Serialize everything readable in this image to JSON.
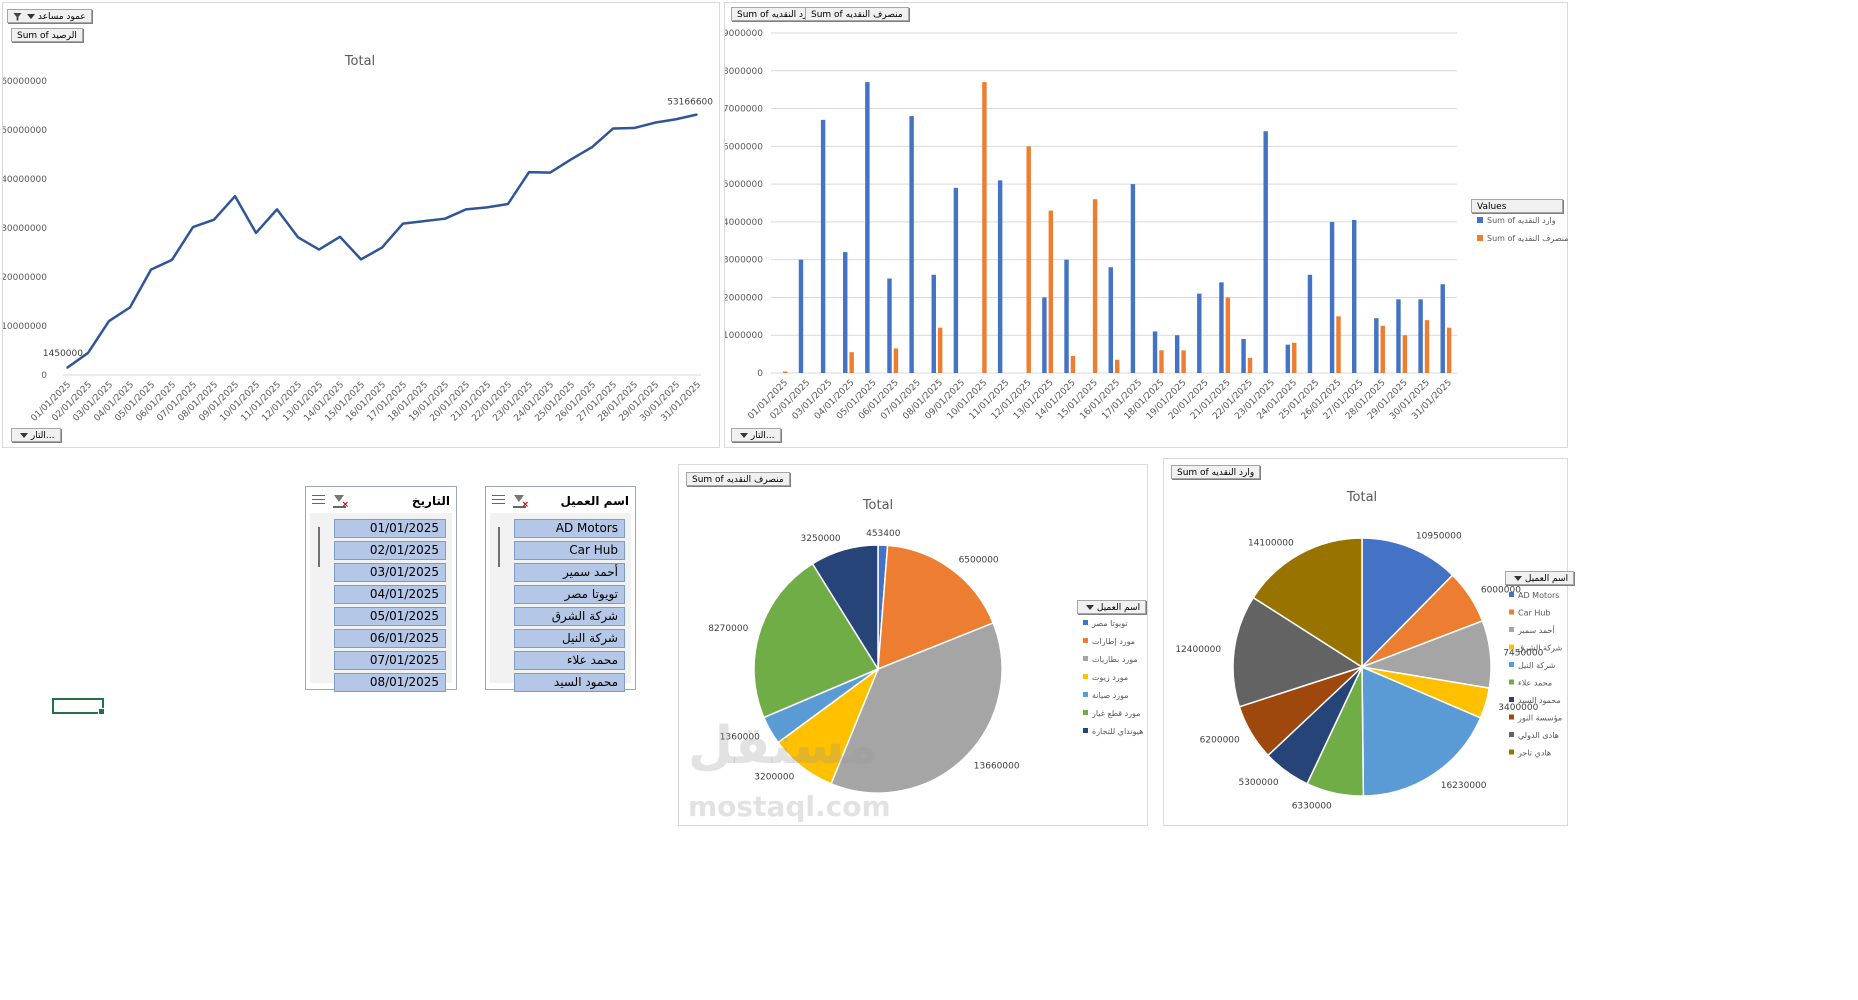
{
  "colors": {
    "blue": "#4472c4",
    "orange": "#ed7d31",
    "gray": "#a5a5a5",
    "gold": "#ffc000",
    "lightblue": "#5b9bd5",
    "green": "#70ad47",
    "navy": "#264478",
    "brown": "#9e480e",
    "darkgray": "#636363",
    "olive": "#997300",
    "line": "#2f5597"
  },
  "chart1": {
    "field_button_top": "عمود مساعد",
    "value_button": "Sum of الرصيد",
    "axis_button": "التار..."
  },
  "chart2": {
    "value_button_1": "Sum of وارد النقديه",
    "value_button_2": "Sum of منصرف النقديه",
    "axis_button": "التار...",
    "legend_title": "Values"
  },
  "chart3": {
    "value_button": "Sum of منصرف النقديه",
    "legend_button": "اسم العميل"
  },
  "chart4": {
    "value_button": "Sum of وارد النقديه",
    "legend_button": "اسم العميل"
  },
  "slicer_date": {
    "title": "التاريخ",
    "items": [
      "01/01/2025",
      "02/01/2025",
      "03/01/2025",
      "04/01/2025",
      "05/01/2025",
      "06/01/2025",
      "07/01/2025",
      "08/01/2025"
    ]
  },
  "slicer_client": {
    "title": "اسم العميل",
    "items": [
      "AD Motors",
      "Car Hub",
      "أحمد سمير",
      "تويوتا مصر",
      "شركة الشرق",
      "شركة النيل",
      "محمد علاء",
      "محمود السيد"
    ]
  },
  "watermark": {
    "line1": "مستقل",
    "line2": "mostaql.com"
  },
  "chart_data": [
    {
      "type": "line",
      "title": "Total",
      "x": [
        "01/01/2025",
        "02/01/2025",
        "03/01/2025",
        "04/01/2025",
        "05/01/2025",
        "06/01/2025",
        "07/01/2025",
        "08/01/2025",
        "09/01/2025",
        "10/01/2025",
        "11/01/2025",
        "12/01/2025",
        "13/01/2025",
        "14/01/2025",
        "15/01/2025",
        "16/01/2025",
        "17/01/2025",
        "18/01/2025",
        "19/01/2025",
        "20/01/2025",
        "21/01/2025",
        "22/01/2025",
        "23/01/2025",
        "24/01/2025",
        "25/01/2025",
        "26/01/2025",
        "27/01/2025",
        "28/01/2025",
        "29/01/2025",
        "30/01/2025",
        "31/01/2025"
      ],
      "series": [
        {
          "values": [
            1450000,
            4500000,
            11000000,
            13800000,
            21500000,
            23500000,
            30200000,
            31700000,
            36500000,
            29000000,
            33800000,
            28100000,
            25600000,
            28200000,
            23600000,
            26000000,
            30900000,
            31400000,
            31900000,
            33800000,
            34200000,
            34900000,
            41400000,
            41300000,
            44000000,
            46500000,
            50300000,
            50400000,
            51500000,
            52200000,
            53166600
          ]
        }
      ],
      "data_labels": [
        {
          "x": "01/01/2025",
          "label": "1450000"
        },
        {
          "x": "31/01/2025",
          "label": "53166600"
        }
      ],
      "ylim": [
        0,
        60000000
      ],
      "yticks": [
        "0",
        "10000000",
        "20000000",
        "30000000",
        "40000000",
        "50000000",
        "60000000"
      ],
      "grid": false
    },
    {
      "type": "bar",
      "x": [
        "01/01/2025",
        "02/01/2025",
        "03/01/2025",
        "04/01/2025",
        "05/01/2025",
        "06/01/2025",
        "07/01/2025",
        "08/01/2025",
        "09/01/2025",
        "10/01/2025",
        "11/01/2025",
        "12/01/2025",
        "13/01/2025",
        "14/01/2025",
        "15/01/2025",
        "16/01/2025",
        "17/01/2025",
        "18/01/2025",
        "19/01/2025",
        "20/01/2025",
        "21/01/2025",
        "22/01/2025",
        "23/01/2025",
        "24/01/2025",
        "25/01/2025",
        "26/01/2025",
        "27/01/2025",
        "28/01/2025",
        "29/01/2025",
        "30/01/2025",
        "31/01/2025"
      ],
      "series": [
        {
          "name": "Sum of وارد النقديه",
          "color": "#4472c4",
          "values": [
            0,
            3000000,
            6700000,
            3200000,
            7700000,
            2500000,
            6800000,
            2600000,
            4900000,
            0,
            5100000,
            0,
            2000000,
            3000000,
            0,
            2800000,
            5000000,
            1100000,
            1000000,
            2100000,
            2400000,
            900000,
            6400000,
            750000,
            2600000,
            4000000,
            4050000,
            1450000,
            1950000,
            1950000,
            2350000
          ]
        },
        {
          "name": "Sum of منصرف النقديه",
          "color": "#ed7d31",
          "values": [
            40000,
            0,
            0,
            550000,
            0,
            650000,
            0,
            1200000,
            0,
            7700000,
            0,
            6000000,
            4300000,
            450000,
            4600000,
            350000,
            0,
            600000,
            600000,
            0,
            2000000,
            400000,
            0,
            800000,
            0,
            1500000,
            0,
            1250000,
            1000000,
            1400000,
            1200000
          ]
        }
      ],
      "ylim": [
        0,
        9000000
      ],
      "yticks": [
        "0",
        "1000000",
        "2000000",
        "3000000",
        "4000000",
        "5000000",
        "6000000",
        "7000000",
        "8000000",
        "9000000"
      ],
      "grid": true,
      "legend": "right"
    },
    {
      "type": "pie",
      "title": "Total",
      "slices": [
        {
          "label": "تويوتا مصر",
          "value": 453400,
          "color": "#4472c4"
        },
        {
          "label": "مورد إطارات",
          "value": 6500000,
          "color": "#ed7d31"
        },
        {
          "label": "مورد بطاريات",
          "value": 13660000,
          "color": "#a5a5a5"
        },
        {
          "label": "مورد زيوت",
          "value": 3200000,
          "color": "#ffc000"
        },
        {
          "label": "مورد صيانة",
          "value": 1360000,
          "color": "#5b9bd5"
        },
        {
          "label": "مورد قطع غيار",
          "value": 8270000,
          "color": "#70ad47"
        },
        {
          "label": "هيونداي للتجارة",
          "value": 3250000,
          "color": "#264478"
        }
      ],
      "legend": "right"
    },
    {
      "type": "pie",
      "title": "Total",
      "slices": [
        {
          "label": "AD Motors",
          "value": 10950000,
          "color": "#4472c4"
        },
        {
          "label": "Car Hub",
          "value": 6000000,
          "color": "#ed7d31"
        },
        {
          "label": "أحمد سمير",
          "value": 7450000,
          "color": "#a5a5a5"
        },
        {
          "label": "شركة الشرق",
          "value": 3400000,
          "color": "#ffc000"
        },
        {
          "label": "شركة النيل",
          "value": 16230000,
          "color": "#5b9bd5"
        },
        {
          "label": "محمد علاء",
          "value": 6330000,
          "color": "#70ad47"
        },
        {
          "label": "محمود السيد",
          "value": 5300000,
          "color": "#264478"
        },
        {
          "label": "مؤسسة النور",
          "value": 6200000,
          "color": "#9e480e"
        },
        {
          "label": "هادى الدولي",
          "value": 12400000,
          "color": "#636363"
        },
        {
          "label": "هادي تاجر",
          "value": 14100000,
          "color": "#997300"
        }
      ],
      "legend": "right"
    }
  ]
}
